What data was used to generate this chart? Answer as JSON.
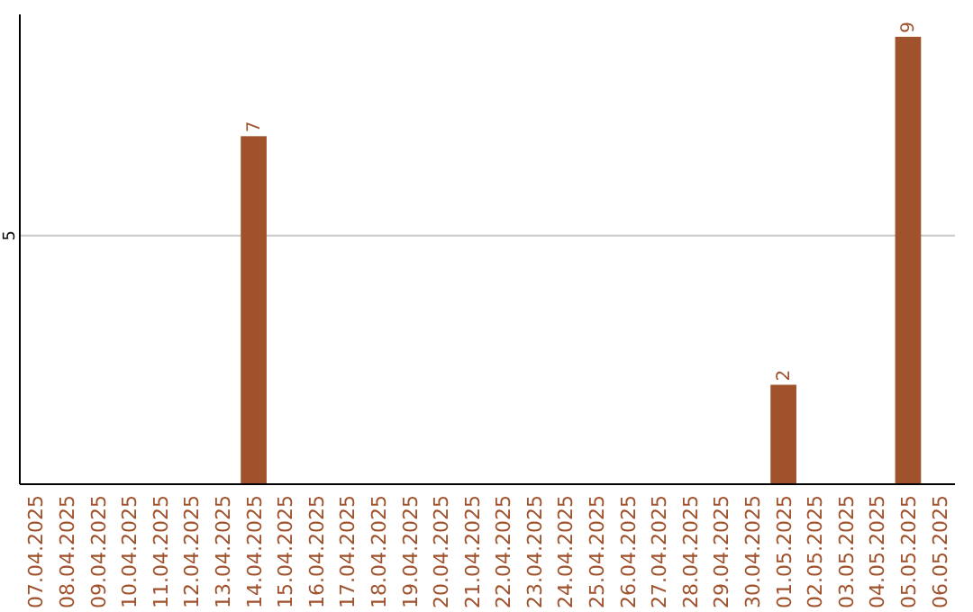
{
  "chart_data": {
    "type": "bar",
    "categories": [
      "07.04.2025",
      "08.04.2025",
      "09.04.2025",
      "10.04.2025",
      "11.04.2025",
      "12.04.2025",
      "13.04.2025",
      "14.04.2025",
      "15.04.2025",
      "16.04.2025",
      "17.04.2025",
      "18.04.2025",
      "19.04.2025",
      "20.04.2025",
      "21.04.2025",
      "22.04.2025",
      "23.04.2025",
      "24.04.2025",
      "25.04.2025",
      "26.04.2025",
      "27.04.2025",
      "28.04.2025",
      "29.04.2025",
      "30.04.2025",
      "01.05.2025",
      "02.05.2025",
      "03.05.2025",
      "04.05.2025",
      "05.05.2025",
      "06.05.2025"
    ],
    "values": [
      0,
      0,
      0,
      0,
      0,
      0,
      0,
      7,
      0,
      0,
      0,
      0,
      0,
      0,
      0,
      0,
      0,
      0,
      0,
      0,
      0,
      0,
      0,
      0,
      2,
      0,
      0,
      0,
      9,
      0
    ],
    "value_labels": [
      null,
      null,
      null,
      null,
      null,
      null,
      null,
      "7",
      null,
      null,
      null,
      null,
      null,
      null,
      null,
      null,
      null,
      null,
      null,
      null,
      null,
      null,
      null,
      null,
      "2",
      null,
      null,
      null,
      "9",
      null
    ],
    "color": "#a0522d",
    "ylim": [
      0,
      9.45
    ],
    "yticks": [
      5
    ],
    "grid": "y"
  }
}
